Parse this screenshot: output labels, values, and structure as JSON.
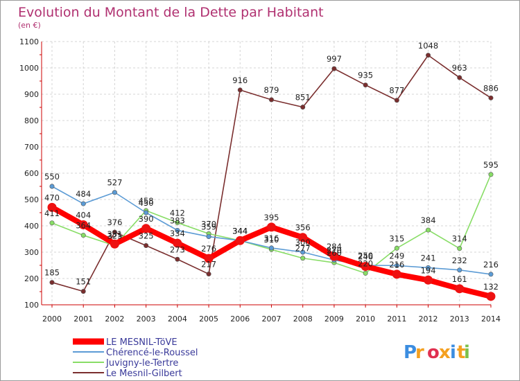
{
  "chart_data": {
    "type": "line",
    "title": "Evolution du Montant de la Dette par Habitant",
    "unit_label": "(en €)",
    "ylim": [
      100,
      1100
    ],
    "y_ticks": [
      "100",
      "200",
      "300",
      "400",
      "500",
      "600",
      "700",
      "800",
      "900",
      "1000",
      "1100"
    ],
    "x": [
      "2000",
      "2001",
      "2002",
      "2003",
      "2004",
      "2005",
      "2006",
      "2007",
      "2008",
      "2009",
      "2010",
      "2011",
      "2012",
      "2013",
      "2014"
    ],
    "grid": true,
    "legend_position": "bottom-left",
    "series": [
      {
        "name": "LE MESNIL-TöVE",
        "color": "#ff0000",
        "values": [
          470,
          404,
          331,
          390,
          334,
          276,
          344,
          395,
          356,
          284,
          246,
          216,
          194,
          161,
          132
        ]
      },
      {
        "name": "Chérencé-le-Roussel",
        "color": "#5b9bd5",
        "values": [
          550,
          484,
          527,
          450,
          383,
          359,
          344,
          316,
          300,
          270,
          250,
          249,
          241,
          232,
          216
        ]
      },
      {
        "name": "Juvigny-le-Tertre",
        "color": "#88dd66",
        "values": [
          411,
          364,
          325,
          458,
          412,
          370,
          344,
          310,
          277,
          260,
          220,
          315,
          384,
          314,
          595
        ]
      },
      {
        "name": "Le Mesnil-Gilbert",
        "color": "#7a2e2e",
        "values": [
          185,
          151,
          376,
          325,
          273,
          217,
          916,
          879,
          851,
          997,
          935,
          877,
          1048,
          963,
          886
        ]
      }
    ],
    "data_labels": [
      {
        "series": 0,
        "i": 0,
        "text": "470"
      },
      {
        "series": 0,
        "i": 1,
        "text": "404"
      },
      {
        "series": 0,
        "i": 2,
        "text": "331"
      },
      {
        "series": 0,
        "i": 3,
        "text": "390"
      },
      {
        "series": 0,
        "i": 4,
        "text": "334"
      },
      {
        "series": 0,
        "i": 5,
        "text": "276"
      },
      {
        "series": 0,
        "i": 6,
        "text": "344"
      },
      {
        "series": 0,
        "i": 7,
        "text": "395"
      },
      {
        "series": 0,
        "i": 8,
        "text": "356"
      },
      {
        "series": 0,
        "i": 9,
        "text": "284"
      },
      {
        "series": 0,
        "i": 10,
        "text": "246"
      },
      {
        "series": 0,
        "i": 11,
        "text": "216"
      },
      {
        "series": 0,
        "i": 12,
        "text": "194"
      },
      {
        "series": 0,
        "i": 13,
        "text": "161"
      },
      {
        "series": 0,
        "i": 14,
        "text": "132"
      },
      {
        "series": 1,
        "i": 0,
        "text": "550"
      },
      {
        "series": 1,
        "i": 1,
        "text": "484"
      },
      {
        "series": 1,
        "i": 2,
        "text": "527"
      },
      {
        "series": 1,
        "i": 3,
        "text": "450"
      },
      {
        "series": 1,
        "i": 4,
        "text": "383"
      },
      {
        "series": 1,
        "i": 5,
        "text": "359"
      },
      {
        "series": 1,
        "i": 6,
        "text": "344"
      },
      {
        "series": 1,
        "i": 7,
        "text": "316"
      },
      {
        "series": 1,
        "i": 8,
        "text": "300"
      },
      {
        "series": 1,
        "i": 9,
        "text": "270"
      },
      {
        "series": 1,
        "i": 10,
        "text": "250"
      },
      {
        "series": 1,
        "i": 11,
        "text": "249"
      },
      {
        "series": 1,
        "i": 12,
        "text": "241"
      },
      {
        "series": 1,
        "i": 13,
        "text": "232"
      },
      {
        "series": 1,
        "i": 14,
        "text": "216"
      },
      {
        "series": 2,
        "i": 0,
        "text": "411"
      },
      {
        "series": 2,
        "i": 1,
        "text": "364"
      },
      {
        "series": 2,
        "i": 2,
        "text": "325"
      },
      {
        "series": 2,
        "i": 3,
        "text": "458"
      },
      {
        "series": 2,
        "i": 4,
        "text": "412"
      },
      {
        "series": 2,
        "i": 5,
        "text": "370"
      },
      {
        "series": 2,
        "i": 6,
        "text": "344"
      },
      {
        "series": 2,
        "i": 7,
        "text": "310"
      },
      {
        "series": 2,
        "i": 8,
        "text": "277"
      },
      {
        "series": 2,
        "i": 9,
        "text": "260"
      },
      {
        "series": 2,
        "i": 10,
        "text": "220"
      },
      {
        "series": 2,
        "i": 11,
        "text": "315"
      },
      {
        "series": 2,
        "i": 12,
        "text": "384"
      },
      {
        "series": 2,
        "i": 13,
        "text": "314"
      },
      {
        "series": 2,
        "i": 14,
        "text": "595"
      },
      {
        "series": 3,
        "i": 0,
        "text": "185"
      },
      {
        "series": 3,
        "i": 1,
        "text": "151"
      },
      {
        "series": 3,
        "i": 2,
        "text": "376"
      },
      {
        "series": 3,
        "i": 3,
        "text": "325"
      },
      {
        "series": 3,
        "i": 4,
        "text": "273"
      },
      {
        "series": 3,
        "i": 5,
        "text": "217"
      },
      {
        "series": 3,
        "i": 6,
        "text": "916"
      },
      {
        "series": 3,
        "i": 7,
        "text": "879"
      },
      {
        "series": 3,
        "i": 8,
        "text": "851"
      },
      {
        "series": 3,
        "i": 9,
        "text": "997"
      },
      {
        "series": 3,
        "i": 10,
        "text": "935"
      },
      {
        "series": 3,
        "i": 11,
        "text": "877"
      },
      {
        "series": 3,
        "i": 12,
        "text": "1048"
      },
      {
        "series": 3,
        "i": 13,
        "text": "963"
      },
      {
        "series": 3,
        "i": 14,
        "text": "886"
      }
    ]
  },
  "brand": {
    "logo_text": "Proxiti",
    "colors": [
      "#3b8de0",
      "#f4a020",
      "#e03050",
      "#f4a020",
      "#3b8de0",
      "#f4a020",
      "#7cc04a"
    ]
  }
}
